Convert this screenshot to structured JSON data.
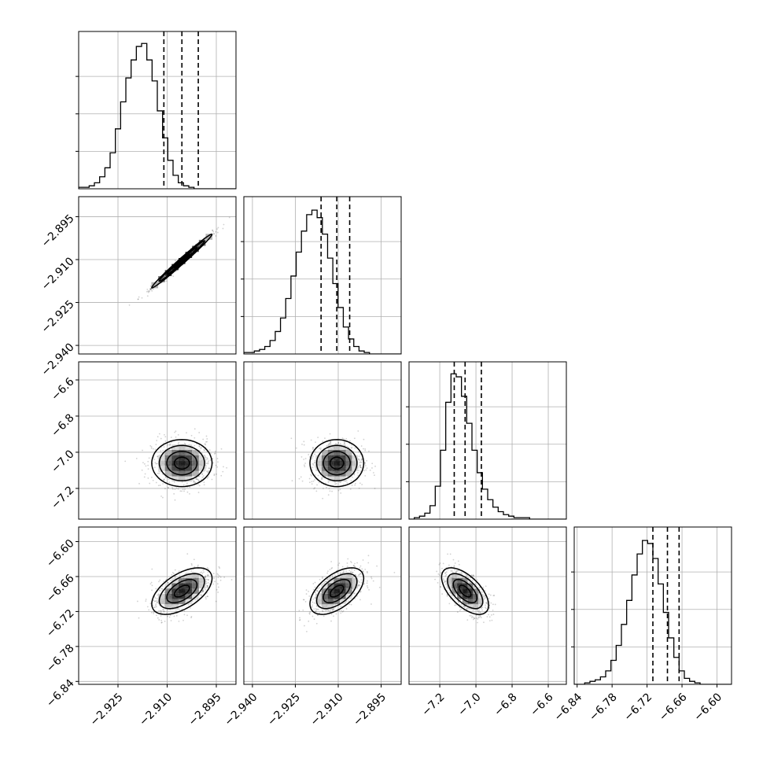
{
  "chart_data": {
    "type": "corner",
    "parameters": [
      {
        "range": [
          -2.937,
          -2.889
        ],
        "ticks": [
          -2.925,
          -2.91,
          -2.895
        ],
        "tick_labels": [
          "−2.925",
          "−2.910",
          "−2.895"
        ],
        "mean": -2.9055,
        "sd": 0.0046,
        "quantiles": [
          -2.911,
          -2.9055,
          -2.9005
        ],
        "hist_edges_start": -2.937,
        "hist_bin_width": 0.0016,
        "hist_counts": [
          1,
          1,
          2,
          4,
          8,
          14,
          24,
          40,
          58,
          74,
          86,
          95,
          97,
          86,
          72,
          52,
          34,
          19,
          9,
          4,
          2,
          1,
          0,
          0,
          0,
          0,
          0,
          0,
          0,
          0
        ],
        "hist_ylim": [
          0,
          105
        ]
      },
      {
        "range": [
          -2.943,
          -2.888
        ],
        "ticks": [
          -2.94,
          -2.925,
          -2.91,
          -2.895
        ],
        "tick_labels": [
          "−2.940",
          "−2.925",
          "−2.910",
          "−2.895"
        ],
        "mean": -2.9105,
        "sd": 0.0047,
        "quantiles": [
          -2.916,
          -2.9105,
          -2.906
        ],
        "hist_edges_start": -2.943,
        "hist_bin_width": 0.00183,
        "hist_counts": [
          1,
          1,
          2,
          3,
          5,
          9,
          15,
          24,
          37,
          52,
          68,
          82,
          93,
          96,
          91,
          80,
          64,
          47,
          31,
          18,
          10,
          5,
          2,
          1,
          0,
          0,
          0,
          0,
          0,
          0
        ],
        "hist_ylim": [
          0,
          105
        ]
      },
      {
        "range": [
          -7.37,
          -6.5
        ],
        "ticks": [
          -7.2,
          -7.0,
          -6.8,
          -6.6
        ],
        "tick_labels": [
          "−7.2",
          "−7.0",
          "−6.8",
          "−6.6"
        ],
        "mean": -7.06,
        "sd": 0.065,
        "quantiles": [
          -7.12,
          -7.06,
          -6.97
        ],
        "hist_edges_start": -7.37,
        "hist_bin_width": 0.029,
        "hist_counts": [
          0,
          1,
          2,
          4,
          9,
          22,
          46,
          78,
          97,
          95,
          82,
          64,
          46,
          31,
          20,
          13,
          8,
          5,
          3,
          2,
          1,
          1,
          1,
          0,
          0,
          0,
          0,
          0,
          0,
          0
        ],
        "hist_ylim": [
          0,
          105
        ]
      },
      {
        "range": [
          -6.845,
          -6.575
        ],
        "ticks": [
          -6.84,
          -6.78,
          -6.72,
          -6.66,
          -6.6
        ],
        "tick_labels": [
          "−6.84",
          "−6.78",
          "−6.72",
          "−6.66",
          "−6.60"
        ],
        "mean": -6.685,
        "sd": 0.02,
        "quantiles": [
          -6.71,
          -6.685,
          -6.665
        ],
        "hist_edges_start": -6.845,
        "hist_bin_width": 0.009,
        "hist_counts": [
          0,
          0,
          1,
          2,
          3,
          5,
          9,
          16,
          26,
          40,
          56,
          73,
          87,
          96,
          94,
          84,
          67,
          48,
          31,
          18,
          9,
          4,
          2,
          1,
          0,
          0,
          0,
          0,
          0,
          0
        ],
        "hist_ylim": [
          0,
          105
        ]
      }
    ],
    "correlations": [
      [
        1.0,
        0.99,
        0.0,
        0.55
      ],
      [
        0.99,
        1.0,
        0.0,
        0.55
      ],
      [
        0.0,
        0.0,
        1.0,
        -0.6
      ],
      [
        0.55,
        0.55,
        -0.6,
        1.0
      ]
    ],
    "contour_levels_sigma": [
      0.5,
      1.0,
      1.5,
      2.0
    ],
    "grid": true
  }
}
